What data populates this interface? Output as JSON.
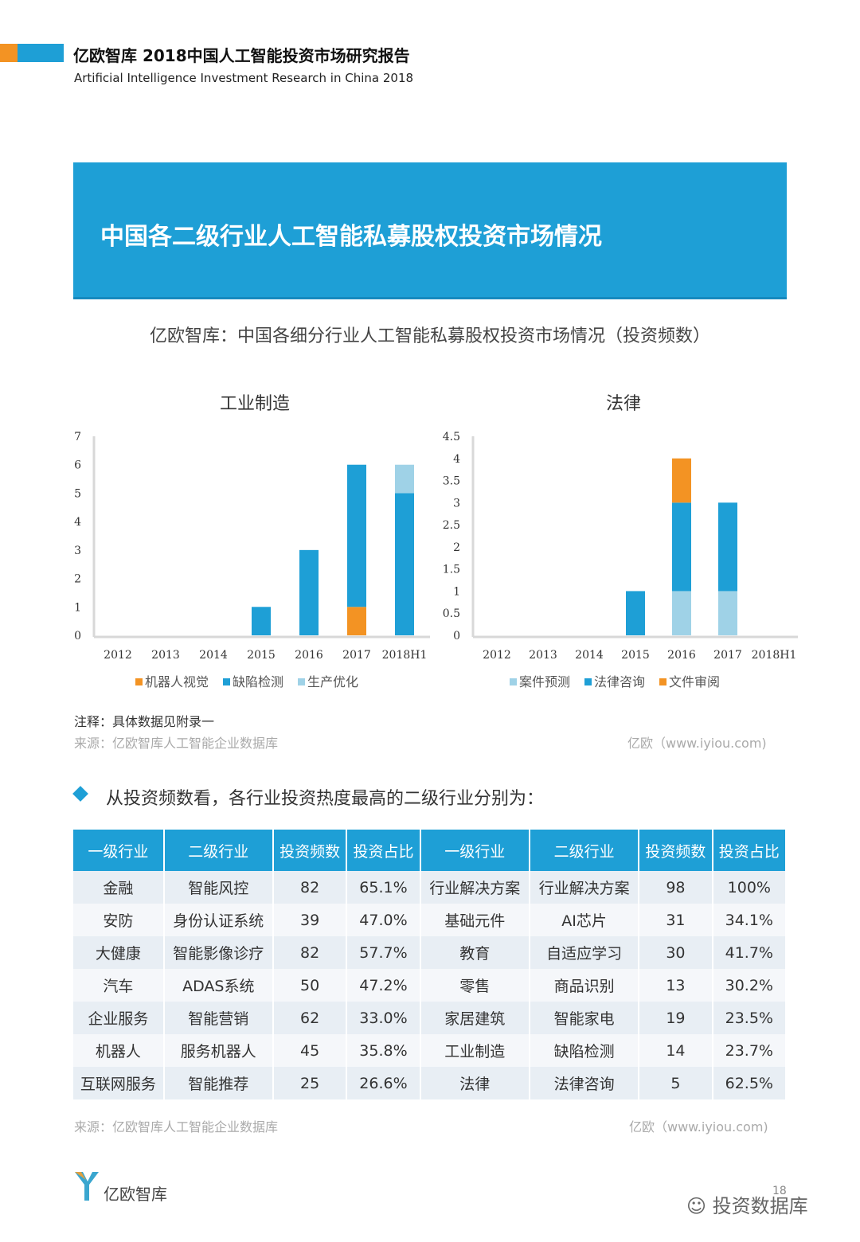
{
  "header": {
    "title": "亿欧智库 2018中国人工智能投资市场研究报告",
    "subtitle": "Artificial Intelligence Investment Research in China 2018"
  },
  "banner": {
    "title": "中国各二级行业人工智能私募股权投资市场情况"
  },
  "figure_title": "亿欧智库：中国各细分行业人工智能私募股权投资市场情况（投资频数）",
  "colors": {
    "accent": "#1e9fd6",
    "orange": "#f39323",
    "light": "#9fd2e7"
  },
  "chart_data": [
    {
      "type": "bar",
      "stacked": true,
      "title": "工业制造",
      "categories": [
        "2012",
        "2013",
        "2014",
        "2015",
        "2016",
        "2017",
        "2018H1"
      ],
      "ylim": [
        0,
        7
      ],
      "yticks": [
        "0",
        "1",
        "2",
        "3",
        "4",
        "5",
        "6",
        "7"
      ],
      "legend": "bottom",
      "series": [
        {
          "name": "机器人视觉",
          "color": "#f39323",
          "values": [
            0,
            0,
            0,
            0,
            0,
            1,
            0
          ]
        },
        {
          "name": "缺陷检测",
          "color": "#1e9fd6",
          "values": [
            0,
            0,
            0,
            1,
            3,
            5,
            5
          ]
        },
        {
          "name": "生产优化",
          "color": "#9fd2e7",
          "values": [
            0,
            0,
            0,
            0,
            0,
            0,
            1
          ]
        }
      ]
    },
    {
      "type": "bar",
      "stacked": true,
      "title": "法律",
      "categories": [
        "2012",
        "2013",
        "2014",
        "2015",
        "2016",
        "2017",
        "2018H1"
      ],
      "ylim": [
        0,
        4.5
      ],
      "yticks": [
        "0",
        "0.5",
        "1",
        "1.5",
        "2",
        "2.5",
        "3",
        "3.5",
        "4",
        "4.5"
      ],
      "legend": "bottom",
      "series": [
        {
          "name": "案件预测",
          "color": "#9fd2e7",
          "values": [
            0,
            0,
            0,
            0,
            1,
            1,
            0
          ]
        },
        {
          "name": "法律咨询",
          "color": "#1e9fd6",
          "values": [
            0,
            0,
            0,
            1,
            2,
            2,
            0
          ]
        },
        {
          "name": "文件审阅",
          "color": "#f39323",
          "values": [
            0,
            0,
            0,
            0,
            1,
            0,
            0
          ]
        }
      ]
    }
  ],
  "notes": {
    "note": "注释：具体数据见附录一",
    "source": "来源：亿欧智库人工智能企业数据库",
    "site": "亿欧（www.iyiou.com)"
  },
  "summary": "从投资频数看，各行业投资热度最高的二级行业分别为：",
  "table": {
    "headers": [
      "一级行业",
      "二级行业",
      "投资频数",
      "投资占比",
      "一级行业",
      "二级行业",
      "投资频数",
      "投资占比"
    ],
    "rows": [
      [
        "金融",
        "智能风控",
        "82",
        "65.1%",
        "行业解决方案",
        "行业解决方案",
        "98",
        "100%"
      ],
      [
        "安防",
        "身份认证系统",
        "39",
        "47.0%",
        "基础元件",
        "AI芯片",
        "31",
        "34.1%"
      ],
      [
        "大健康",
        "智能影像诊疗",
        "82",
        "57.7%",
        "教育",
        "自适应学习",
        "30",
        "41.7%"
      ],
      [
        "汽车",
        "ADAS系统",
        "50",
        "47.2%",
        "零售",
        "商品识别",
        "13",
        "30.2%"
      ],
      [
        "企业服务",
        "智能营销",
        "62",
        "33.0%",
        "家居建筑",
        "智能家电",
        "19",
        "23.5%"
      ],
      [
        "机器人",
        "服务机器人",
        "45",
        "35.8%",
        "工业制造",
        "缺陷检测",
        "14",
        "23.7%"
      ],
      [
        "互联网服务",
        "智能推荐",
        "25",
        "26.6%",
        "法律",
        "法律咨询",
        "5",
        "62.5%"
      ]
    ]
  },
  "table_source": "来源：亿欧智库人工智能企业数据库",
  "table_site": "亿欧（www.iyiou.com)",
  "footer": {
    "logo_text": "亿欧智库",
    "page": "18",
    "watermark": "投资数据库"
  }
}
